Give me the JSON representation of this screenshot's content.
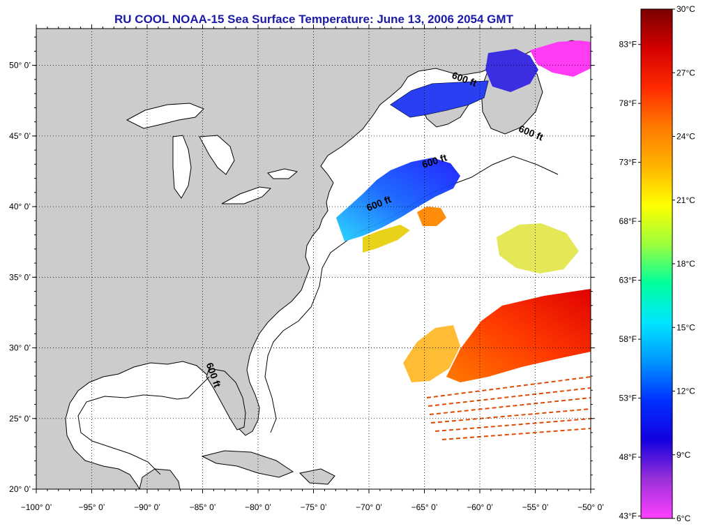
{
  "title": "RU COOL  NOAA-15  Sea Surface Temperature:  June 13, 2006 2054 GMT",
  "colors": {
    "title": "#1a1aa8",
    "land": "#cccccc",
    "ocean": "#ffffff",
    "coast": "#000000"
  },
  "map": {
    "lon_range": [
      -100,
      -50
    ],
    "lat_range": [
      20,
      52
    ],
    "grid": "dotted",
    "lon_ticks": [
      "−100° 0’",
      "−95° 0’",
      "−90° 0’",
      "−85° 0’",
      "−80° 0’",
      "−75° 0’",
      "−70° 0’",
      "−65° 0’",
      "−60° 0’",
      "−55° 0’",
      "−50° 0’"
    ],
    "lon_values": [
      -100,
      -95,
      -90,
      -85,
      -80,
      -75,
      -70,
      -65,
      -60,
      -55,
      -50
    ],
    "lat_ticks": [
      "20° 0’",
      "25° 0’",
      "30° 0’",
      "35° 0’",
      "40° 0’",
      "45° 0’",
      "50° 0’"
    ],
    "lat_values": [
      20,
      25,
      30,
      35,
      40,
      45,
      50
    ],
    "contour_label": "600 ft",
    "contour_labels": [
      {
        "text": "600 ft",
        "lon": -61.5,
        "lat": 48.8
      },
      {
        "text": "600 ft",
        "lon": -55.5,
        "lat": 45.0
      },
      {
        "text": "600 ft",
        "lon": -64.0,
        "lat": 43.0
      },
      {
        "text": "600 ft",
        "lon": -69.0,
        "lat": 40.0
      },
      {
        "text": "600 ft",
        "lon": -84.3,
        "lat": 28.0
      }
    ]
  },
  "colorbar": {
    "range_c": [
      6,
      30
    ],
    "celsius_labels": [
      "30°C",
      "27°C",
      "24°C",
      "21°C",
      "18°C",
      "15°C",
      "12°C",
      "9°C",
      "6°C"
    ],
    "celsius_values": [
      30,
      27,
      24,
      21,
      18,
      15,
      12,
      9,
      6
    ],
    "fahrenheit_labels": [
      "83°F",
      "78°F",
      "73°F",
      "68°F",
      "63°F",
      "58°F",
      "53°F",
      "48°F",
      "43°F"
    ],
    "fahrenheit_values": [
      83,
      78,
      73,
      68,
      63,
      58,
      53,
      48,
      43
    ],
    "gradient": [
      "#7a0000",
      "#d40000",
      "#ff2a00",
      "#ff7a00",
      "#ffb300",
      "#ffff00",
      "#9bff3c",
      "#00ff9e",
      "#00e6ff",
      "#0096ff",
      "#0030ff",
      "#1400e0",
      "#9a30d8",
      "#ff40ff"
    ]
  }
}
